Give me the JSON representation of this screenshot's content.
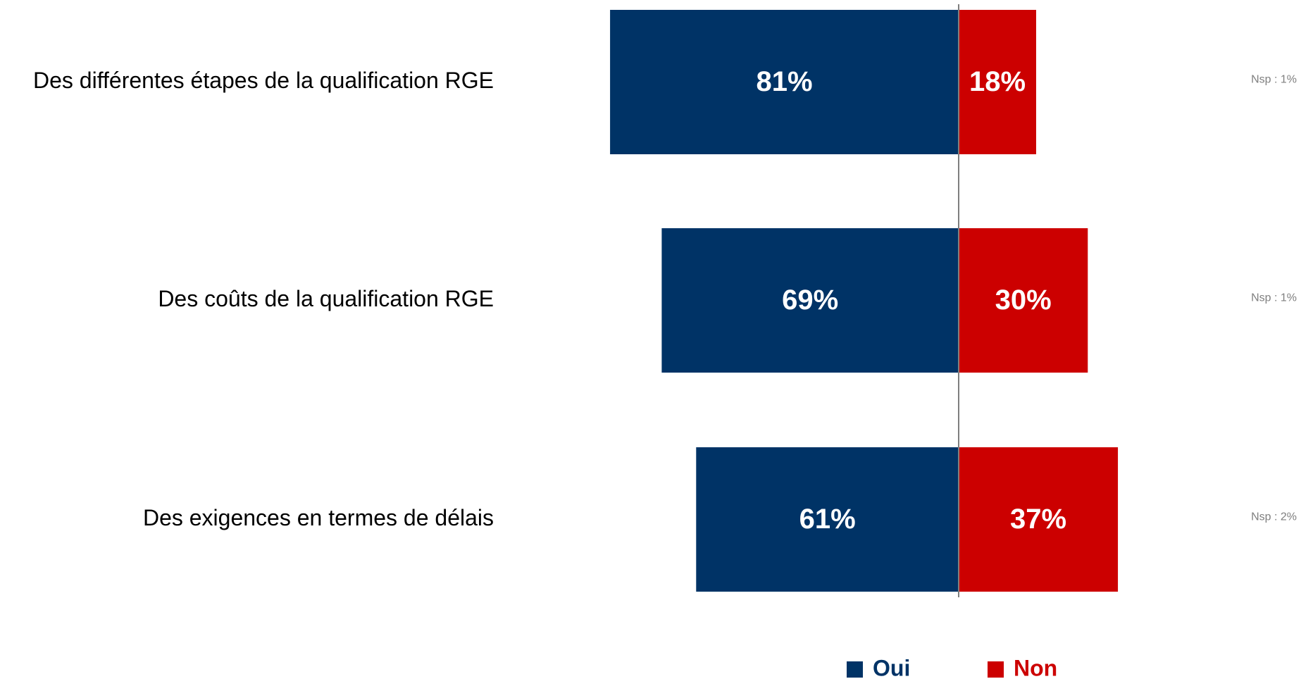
{
  "chart_data": {
    "type": "bar",
    "categories": [
      "Des différentes étapes de la qualification RGE",
      "Des coûts de la qualification RGE",
      "Des exigences en termes de délais"
    ],
    "series": [
      {
        "name": "Oui",
        "color": "#003366",
        "values": [
          81,
          69,
          61
        ],
        "value_labels": [
          "81%",
          "69%",
          "61%"
        ]
      },
      {
        "name": "Non",
        "color": "#cc0000",
        "values": [
          18,
          30,
          37
        ],
        "value_labels": [
          "18%",
          "30%",
          "37%"
        ]
      }
    ],
    "annotations": [
      "Nsp : 1%",
      "Nsp : 1%",
      "Nsp : 2%"
    ],
    "legend": "bottom"
  }
}
